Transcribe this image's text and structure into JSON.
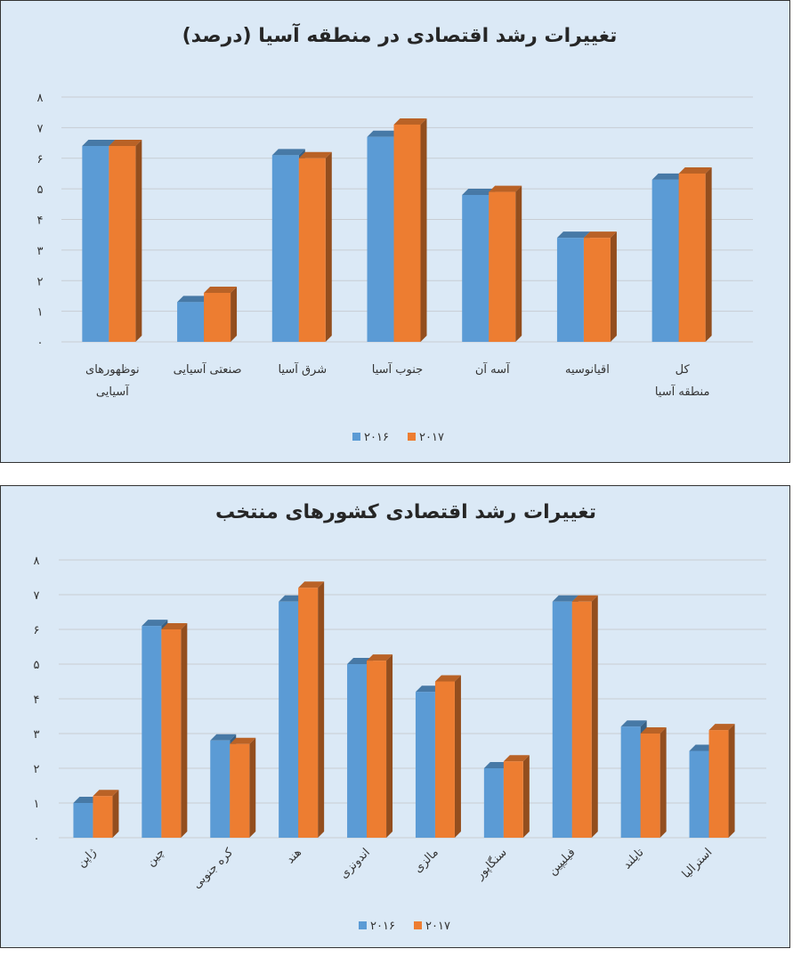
{
  "chart_data": [
    {
      "type": "bar",
      "title": "تغییرات رشد اقتصادی در منطقه آسیا (درصد)",
      "categories": [
        "نوظهورهای آسیایی",
        "صنعتی آسیایی",
        "شرق آسیا",
        "جنوب آسیا",
        "آسه آن",
        "اقیانوسیه",
        "کل منطقه آسیا"
      ],
      "series": [
        {
          "name": "۲۰۱۶",
          "values": [
            6.4,
            1.3,
            6.1,
            6.7,
            4.8,
            3.4,
            5.3
          ]
        },
        {
          "name": "۲۰۱۷",
          "values": [
            6.4,
            1.6,
            6.0,
            7.1,
            4.9,
            3.4,
            5.5
          ]
        }
      ],
      "ylim": [
        0,
        8
      ],
      "yticks": [
        "۰",
        "۱",
        "۲",
        "۳",
        "۴",
        "۵",
        "۶",
        "۷",
        "۸"
      ],
      "grid": true,
      "legend": "bottom",
      "colors": [
        "#5b9bd5",
        "#ed7d31"
      ]
    },
    {
      "type": "bar",
      "title": "تغییرات رشد اقتصادی کشورهای منتخب",
      "categories": [
        "ژاپن",
        "چین",
        "کره جنوبی",
        "هند",
        "اندونزی",
        "مالزی",
        "سنگاپور",
        "فیلیپین",
        "تایلند",
        "استرالیا"
      ],
      "series": [
        {
          "name": "۲۰۱۶",
          "values": [
            1.0,
            6.1,
            2.8,
            6.8,
            5.0,
            4.2,
            2.0,
            6.8,
            3.2,
            2.5
          ]
        },
        {
          "name": "۲۰۱۷",
          "values": [
            1.2,
            6.0,
            2.7,
            7.2,
            5.1,
            4.5,
            2.2,
            6.8,
            3.0,
            3.1
          ]
        }
      ],
      "ylim": [
        0,
        8
      ],
      "yticks": [
        "۰",
        "۱",
        "۲",
        "۳",
        "۴",
        "۵",
        "۶",
        "۷",
        "۸"
      ],
      "grid": true,
      "legend": "bottom",
      "colors": [
        "#5b9bd5",
        "#ed7d31"
      ]
    }
  ]
}
